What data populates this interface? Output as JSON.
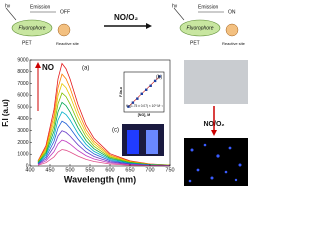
{
  "scheme": {
    "left": {
      "light": "hν",
      "emission": "Emission",
      "state": "OFF",
      "fluorophore": "Fluorophore",
      "pet": "PET",
      "site": "Reactive site"
    },
    "reagent": "NO/O₂",
    "right": {
      "light": "hν",
      "emission": "Emission",
      "state": "ON",
      "fluorophore": "Fluorophore",
      "pet": "PET",
      "site": "Reactive site"
    }
  },
  "chart_data": [
    {
      "type": "line",
      "xlabel": "Wavelength (nm)",
      "ylabel": "F.I (a.u)",
      "panel_label": "(a)",
      "arrow_label": "NO",
      "x": [
        420,
        440,
        460,
        470,
        480,
        490,
        500,
        520,
        540,
        560,
        600,
        650,
        700,
        750
      ],
      "xlim": [
        400,
        750
      ],
      "xticks": [
        400,
        450,
        500,
        550,
        600,
        650,
        700,
        750
      ],
      "ylim": [
        0,
        9000
      ],
      "yticks": [
        0,
        1000,
        2000,
        3000,
        4000,
        5000,
        6000,
        7000,
        8000,
        9000
      ],
      "series": [
        {
          "color": "#e41a1c",
          "values": [
            435,
            1740,
            4785,
            7395,
            8700,
            8265,
            7395,
            5220,
            3480,
            2349,
            1044,
            435,
            174,
            87
          ]
        },
        {
          "color": "#ff7f00",
          "values": [
            390,
            1560,
            4290,
            6630,
            7800,
            7410,
            6630,
            4680,
            3120,
            2106,
            936,
            390,
            156,
            78
          ]
        },
        {
          "color": "#e6c800",
          "values": [
            350,
            1400,
            3850,
            5950,
            7000,
            6650,
            5950,
            4200,
            2800,
            1890,
            840,
            350,
            140,
            70
          ]
        },
        {
          "color": "#7fc000",
          "values": [
            310,
            1240,
            3410,
            5270,
            6200,
            5890,
            5270,
            3720,
            2480,
            1674,
            744,
            310,
            124,
            62
          ]
        },
        {
          "color": "#00a650",
          "values": [
            270,
            1080,
            2970,
            4590,
            5400,
            5130,
            4590,
            3240,
            2160,
            1458,
            648,
            270,
            108,
            54
          ]
        },
        {
          "color": "#00b0c8",
          "values": [
            230,
            920,
            2530,
            3910,
            4600,
            4370,
            3910,
            2760,
            1840,
            1242,
            552,
            230,
            92,
            46
          ]
        },
        {
          "color": "#1f5fd6",
          "values": [
            190,
            760,
            2090,
            3230,
            3800,
            3610,
            3230,
            2280,
            1520,
            1026,
            456,
            190,
            76,
            38
          ]
        },
        {
          "color": "#6a3dc8",
          "values": [
            150,
            600,
            1650,
            2550,
            3000,
            2850,
            2550,
            1800,
            1200,
            810,
            360,
            150,
            60,
            30
          ]
        },
        {
          "color": "#c03cc0",
          "values": [
            110,
            440,
            1210,
            1870,
            2200,
            2090,
            1870,
            1320,
            880,
            594,
            264,
            110,
            44,
            22
          ]
        },
        {
          "color": "#e0508c",
          "values": [
            70,
            280,
            770,
            1190,
            1400,
            1330,
            1190,
            840,
            560,
            378,
            168,
            70,
            28,
            14
          ]
        }
      ]
    },
    {
      "type": "scatter",
      "panel_label": "(b)",
      "xlabel": "[NO], M",
      "ylabel": "F.I/a.u",
      "equation": "K=(1.75 ± 0.07) × 10⁵ M⁻¹",
      "x": [
        1,
        2,
        3,
        4,
        5,
        6,
        7,
        8
      ],
      "values": [
        1.2,
        2.1,
        3.0,
        4.1,
        5.0,
        5.9,
        7.0,
        8.0
      ],
      "color": "#1f3fa0",
      "xlim": [
        0,
        9
      ],
      "ylim": [
        0,
        9
      ]
    }
  ],
  "photo": {
    "panel_label": "(c)",
    "reagent": "NO/O₂"
  }
}
